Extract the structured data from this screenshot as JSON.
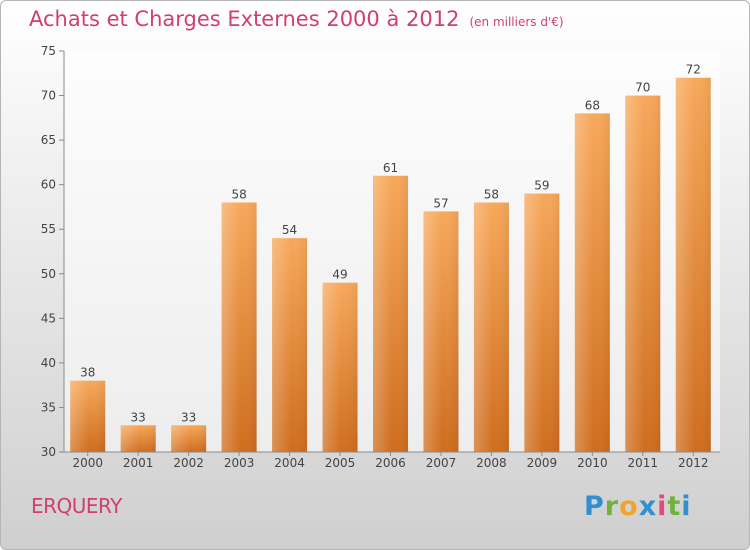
{
  "header": {
    "title": "Achats et Charges Externes 2000 à 2012",
    "subtitle": "(en milliers d'€)"
  },
  "footer": {
    "commune": "ERQUERY",
    "logo_letters": [
      "P",
      "r",
      "o",
      "x",
      "i",
      "t",
      "i"
    ],
    "logo_colors": [
      "#2f8fd0",
      "#6fb33a",
      "#f2a32c",
      "#2f8fd0",
      "#e04b7a",
      "#6fb33a",
      "#2f8fd0"
    ]
  },
  "colors": {
    "bar_light": "#f7a85a",
    "bar_dark": "#cf6d1e",
    "accent": "#d13f6e"
  },
  "chart_data": {
    "type": "bar",
    "title": "Achats et Charges Externes 2000 à 2012",
    "subtitle": "(en milliers d'€)",
    "categories": [
      "2000",
      "2001",
      "2002",
      "2003",
      "2004",
      "2005",
      "2006",
      "2007",
      "2008",
      "2009",
      "2010",
      "2011",
      "2012"
    ],
    "values": [
      38,
      33,
      33,
      58,
      54,
      49,
      61,
      57,
      58,
      59,
      68,
      70,
      72
    ],
    "ylim": [
      30,
      75
    ],
    "yticks": [
      30,
      35,
      40,
      45,
      50,
      55,
      60,
      65,
      70,
      75
    ],
    "grid": false,
    "data_labels": true
  }
}
